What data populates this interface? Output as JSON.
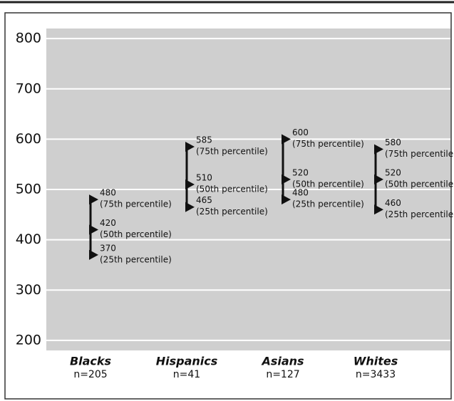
{
  "chart_data": {
    "type": "range",
    "categories": [
      "Blacks",
      "Hispanics",
      "Asians",
      "Whites"
    ],
    "category_notes": [
      "n=205",
      "n=41",
      "n=127",
      "n=3433"
    ],
    "series": [
      {
        "name": "(75th percentile)",
        "values": [
          480,
          585,
          600,
          580
        ]
      },
      {
        "name": "(50th percentile)",
        "values": [
          420,
          510,
          520,
          520
        ]
      },
      {
        "name": "(25th percentile)",
        "values": [
          370,
          465,
          480,
          460
        ]
      }
    ],
    "color": "#111111",
    "ylim": [
      180,
      820
    ],
    "yticks": [
      200,
      300,
      400,
      500,
      600,
      700,
      800
    ],
    "grid": true
  }
}
